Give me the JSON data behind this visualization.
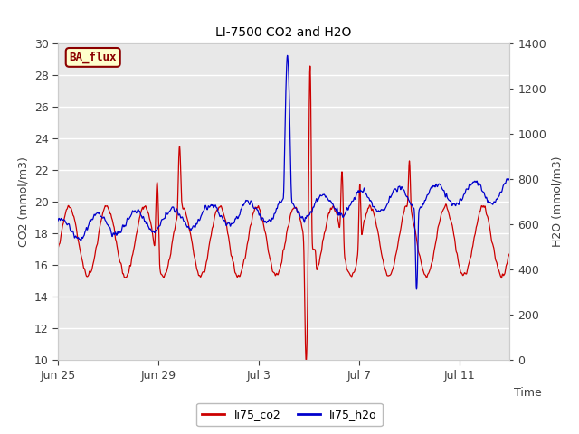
{
  "title": "LI-7500 CO2 and H2O",
  "xlabel": "Time",
  "ylabel_left": "CO2 (mmol/m3)",
  "ylabel_right": "H2O (mmol/m3)",
  "ylim_left": [
    10,
    30
  ],
  "ylim_right": [
    0,
    1400
  ],
  "yticks_left": [
    10,
    12,
    14,
    16,
    18,
    20,
    22,
    24,
    26,
    28,
    30
  ],
  "yticks_right": [
    0,
    200,
    400,
    600,
    800,
    1000,
    1200,
    1400
  ],
  "xtick_labels": [
    "Jun 25",
    "Jun 29",
    "Jul 3",
    "Jul 7",
    "Jul 11"
  ],
  "bg_color": "#e8e8e8",
  "fig_bg_color": "#ffffff",
  "grid_color": "#ffffff",
  "line_co2_color": "#cc0000",
  "line_h2o_color": "#0000cc",
  "legend_label_co2": "li75_co2",
  "legend_label_h2o": "li75_h2o",
  "watermark_text": "BA_flux",
  "watermark_bg": "#ffffcc",
  "watermark_border": "#8b0000",
  "font_color": "#404040",
  "font_size": 9
}
